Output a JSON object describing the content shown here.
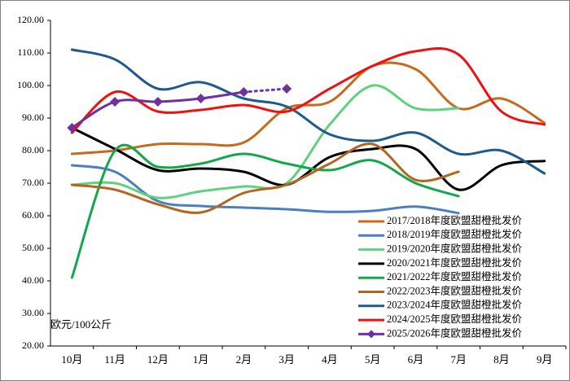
{
  "chart_data": {
    "type": "line",
    "ylabel": "欧元/100公斤",
    "categories": [
      "10月",
      "11月",
      "12月",
      "1月",
      "2月",
      "3月",
      "4月",
      "5月",
      "6月",
      "7月",
      "8月",
      "9月"
    ],
    "ylim": [
      20,
      120
    ],
    "yticks": [
      {
        "value": 20,
        "label": "20.00"
      },
      {
        "value": 30,
        "label": "30.00"
      },
      {
        "value": 40,
        "label": "40.00"
      },
      {
        "value": 50,
        "label": "50.00"
      },
      {
        "value": 60,
        "label": "60.00"
      },
      {
        "value": 70,
        "label": "70.00"
      },
      {
        "value": 80,
        "label": "80.00"
      },
      {
        "value": 90,
        "label": "90.00"
      },
      {
        "value": 100,
        "label": "100.00"
      },
      {
        "value": 110,
        "label": "110.00"
      },
      {
        "value": 120,
        "label": "120.00"
      }
    ],
    "grid": false,
    "legend": "bottom-right",
    "series": [
      {
        "name": "2017/2018年度欧盟甜橙批发价",
        "color": "#c8691e",
        "values": [
          79,
          80,
          82,
          82,
          82.5,
          93,
          95,
          106,
          105,
          93,
          96,
          88.5
        ]
      },
      {
        "name": "2018/2019年度欧盟甜橙批发价",
        "color": "#4a7fc1",
        "values": [
          75.5,
          73.5,
          64.5,
          63,
          62.5,
          62,
          61.2,
          61.5,
          62.8,
          60.8,
          null,
          null
        ]
      },
      {
        "name": "2019/2020年度欧盟甜橙批发价",
        "color": "#5fd17f",
        "values": [
          69.5,
          70,
          65.5,
          67.5,
          69,
          70,
          88,
          100,
          93,
          93,
          null,
          null
        ]
      },
      {
        "name": "2020/2021年度欧盟甜橙批发价",
        "color": "#000000",
        "values": [
          87,
          80.5,
          74,
          74.5,
          73.5,
          69.5,
          78,
          80.5,
          80.5,
          68,
          75.5,
          76.8
        ]
      },
      {
        "name": "2021/2022年度欧盟甜橙批发价",
        "color": "#12a84a",
        "values": [
          41,
          80,
          75,
          76,
          79,
          76,
          74,
          77,
          70,
          66,
          null,
          null
        ]
      },
      {
        "name": "2022/2023年度欧盟甜橙批发价",
        "color": "#b5651d",
        "values": [
          69.5,
          68,
          63.5,
          61,
          67,
          69.5,
          76,
          82,
          71,
          73.5,
          null,
          null
        ]
      },
      {
        "name": "2023/2024年度欧盟甜橙批发价",
        "color": "#1f5a8c",
        "values": [
          111,
          108,
          99,
          101,
          96,
          93.5,
          85,
          83,
          85.5,
          79,
          80,
          73
        ]
      },
      {
        "name": "2024/2025年度欧盟甜橙批发价",
        "color": "#f01010",
        "values": [
          85.5,
          98,
          92,
          92.5,
          94,
          92,
          99,
          106,
          110.5,
          109.5,
          92,
          88
        ]
      },
      {
        "name": "2025/2026年度欧盟甜橙批发价",
        "color": "#7030a0",
        "marker": "diamond",
        "dotted_after": 4,
        "values": [
          87,
          95,
          95,
          96,
          98,
          99,
          null,
          null,
          null,
          null,
          null,
          null
        ]
      }
    ]
  }
}
